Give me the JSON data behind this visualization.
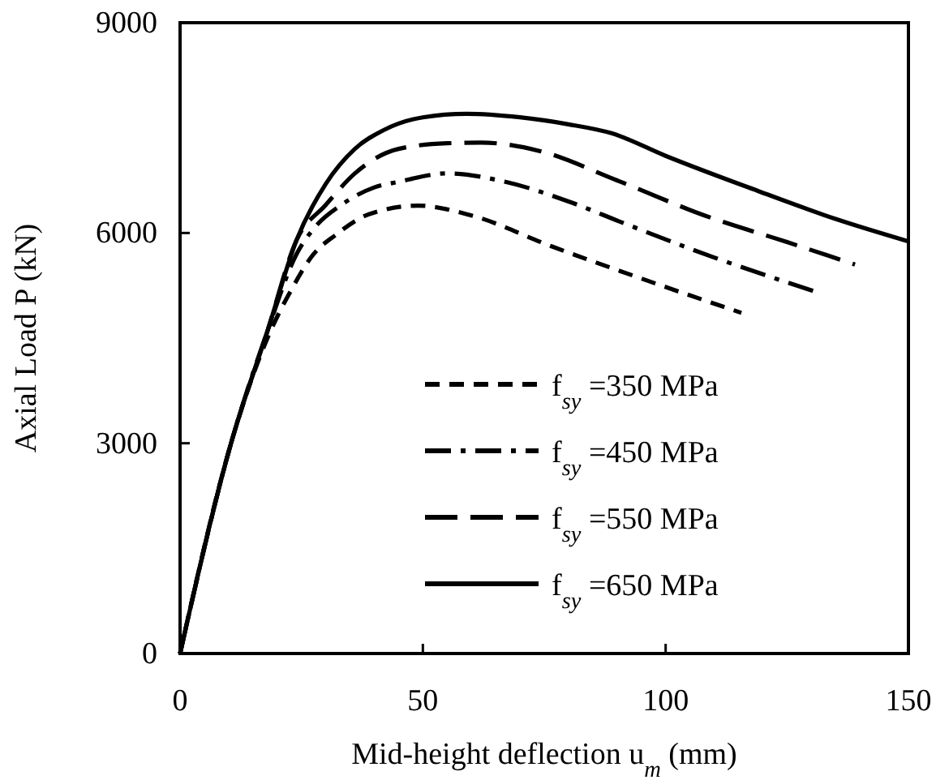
{
  "chart_data": {
    "type": "line",
    "xlabel": "Mid-height deflection u$_{m}$ (mm)",
    "ylabel": "Axial Load  P (kN)",
    "xlim": [
      0,
      150
    ],
    "xticks": [
      0,
      50,
      100,
      150
    ],
    "ylim": [
      0,
      9000
    ],
    "yticks": [
      0,
      3000,
      6000,
      9000
    ],
    "grid": false,
    "legend": "bottom right",
    "marker": "none",
    "series": [
      {
        "name": "f$_{sy}$ =350 MPa",
        "color": "#000000",
        "line_style": "dashed",
        "x": [
          0,
          10.5,
          18,
          23,
          27.4,
          32,
          39,
          49,
          60,
          76.5,
          95,
          115.6
        ],
        "values": [
          0,
          3000,
          4500,
          5200,
          5690,
          5970,
          6270,
          6390,
          6250,
          5810,
          5350,
          4860
        ]
      },
      {
        "name": "f$_{sy}$ =450 MPa",
        "color": "#000000",
        "line_style": "dashdot",
        "x": [
          0,
          10.5,
          18,
          24,
          28,
          33,
          40,
          45,
          55,
          67,
          80,
          91,
          110,
          131
        ],
        "values": [
          0,
          3000,
          4600,
          5700,
          6100,
          6390,
          6650,
          6730,
          6850,
          6730,
          6450,
          6150,
          5650,
          5160
        ]
      },
      {
        "name": "f$_{sy}$ =550 MPa",
        "color": "#000000",
        "line_style": "longdash",
        "x": [
          0,
          10.5,
          18,
          24,
          30,
          36,
          45,
          55,
          62,
          74,
          90,
          108,
          125,
          139
        ],
        "values": [
          0,
          3000,
          4600,
          5900,
          6400,
          6850,
          7200,
          7280,
          7290,
          7170,
          6750,
          6250,
          5870,
          5550
        ]
      },
      {
        "name": "f$_{sy}$ =650 MPa",
        "color": "#000000",
        "line_style": "solid",
        "x": [
          0,
          10.5,
          18,
          24,
          30,
          36,
          42,
          50,
          59,
          70,
          80,
          89,
          100,
          119,
          135,
          150
        ],
        "values": [
          0,
          3000,
          4600,
          5900,
          6700,
          7200,
          7470,
          7650,
          7700,
          7650,
          7550,
          7420,
          7100,
          6600,
          6200,
          5880
        ]
      }
    ]
  }
}
